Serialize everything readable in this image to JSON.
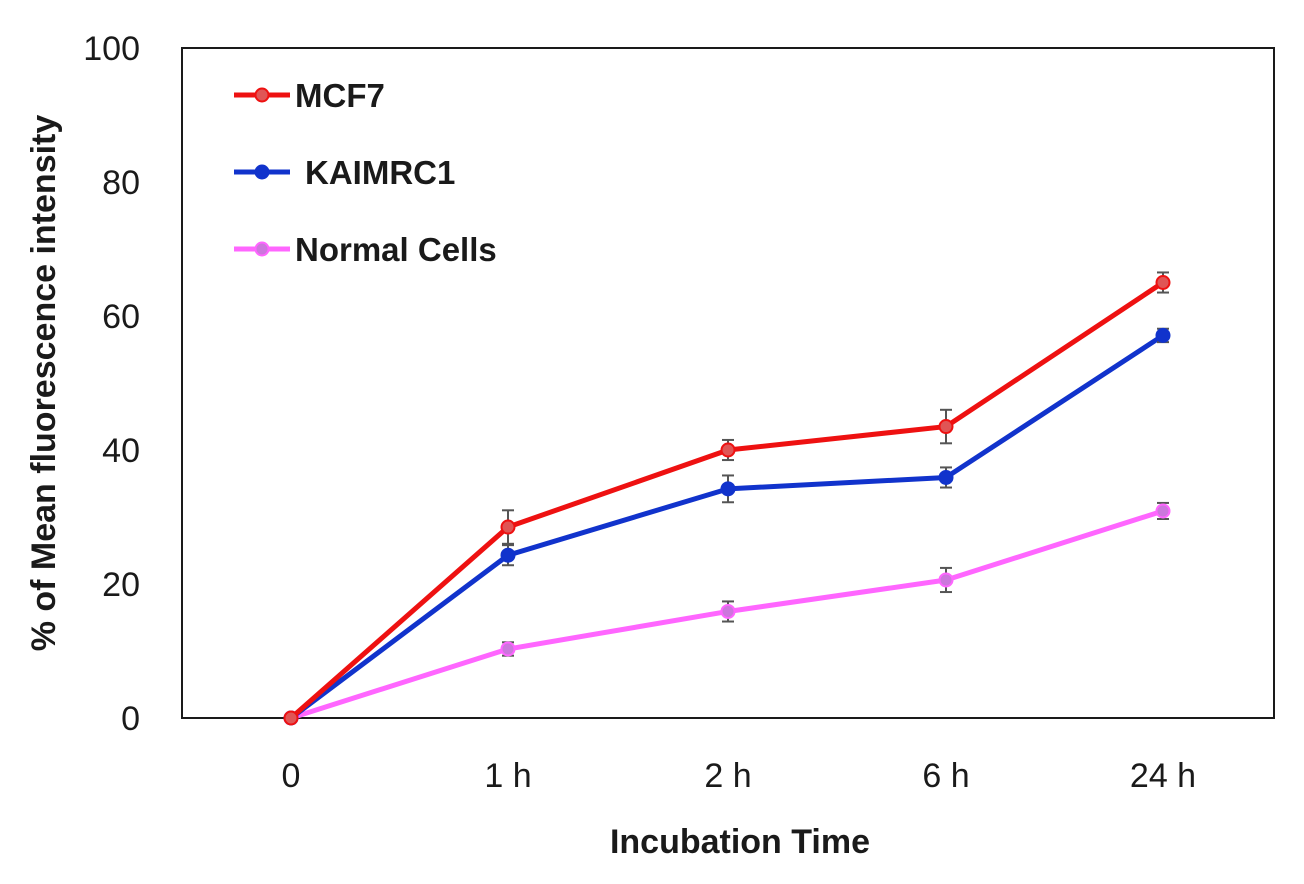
{
  "chart_data": {
    "type": "line",
    "title": "",
    "xlabel": "Incubation Time",
    "ylabel": "% of Mean fluorescence intensity",
    "categories": [
      "0",
      "1 h",
      "2 h",
      "6 h",
      "24 h"
    ],
    "ylim": [
      0,
      100
    ],
    "yticks": [
      0,
      20,
      40,
      60,
      80,
      100
    ],
    "grid": false,
    "legend_position": "top-left",
    "series": [
      {
        "name": "MCF7",
        "color": "#ee1111",
        "marker_fill": "#e05555",
        "values": [
          0,
          28.5,
          40,
          43.5,
          65
        ],
        "errors": [
          0,
          2.5,
          1.5,
          2.5,
          1.5
        ]
      },
      {
        "name": "KAIMRC1",
        "color": "#1133cc",
        "marker_fill": "#1133cc",
        "values": [
          0,
          24.3,
          34.2,
          35.9,
          57.1
        ],
        "errors": [
          0,
          1.5,
          2.0,
          1.5,
          1.0
        ]
      },
      {
        "name": "Normal Cells",
        "color": "#ff66ff",
        "marker_fill": "#cc77dd",
        "values": [
          0,
          10.3,
          15.9,
          20.6,
          30.9
        ],
        "errors": [
          0,
          1.0,
          1.5,
          1.8,
          1.2
        ]
      }
    ]
  }
}
